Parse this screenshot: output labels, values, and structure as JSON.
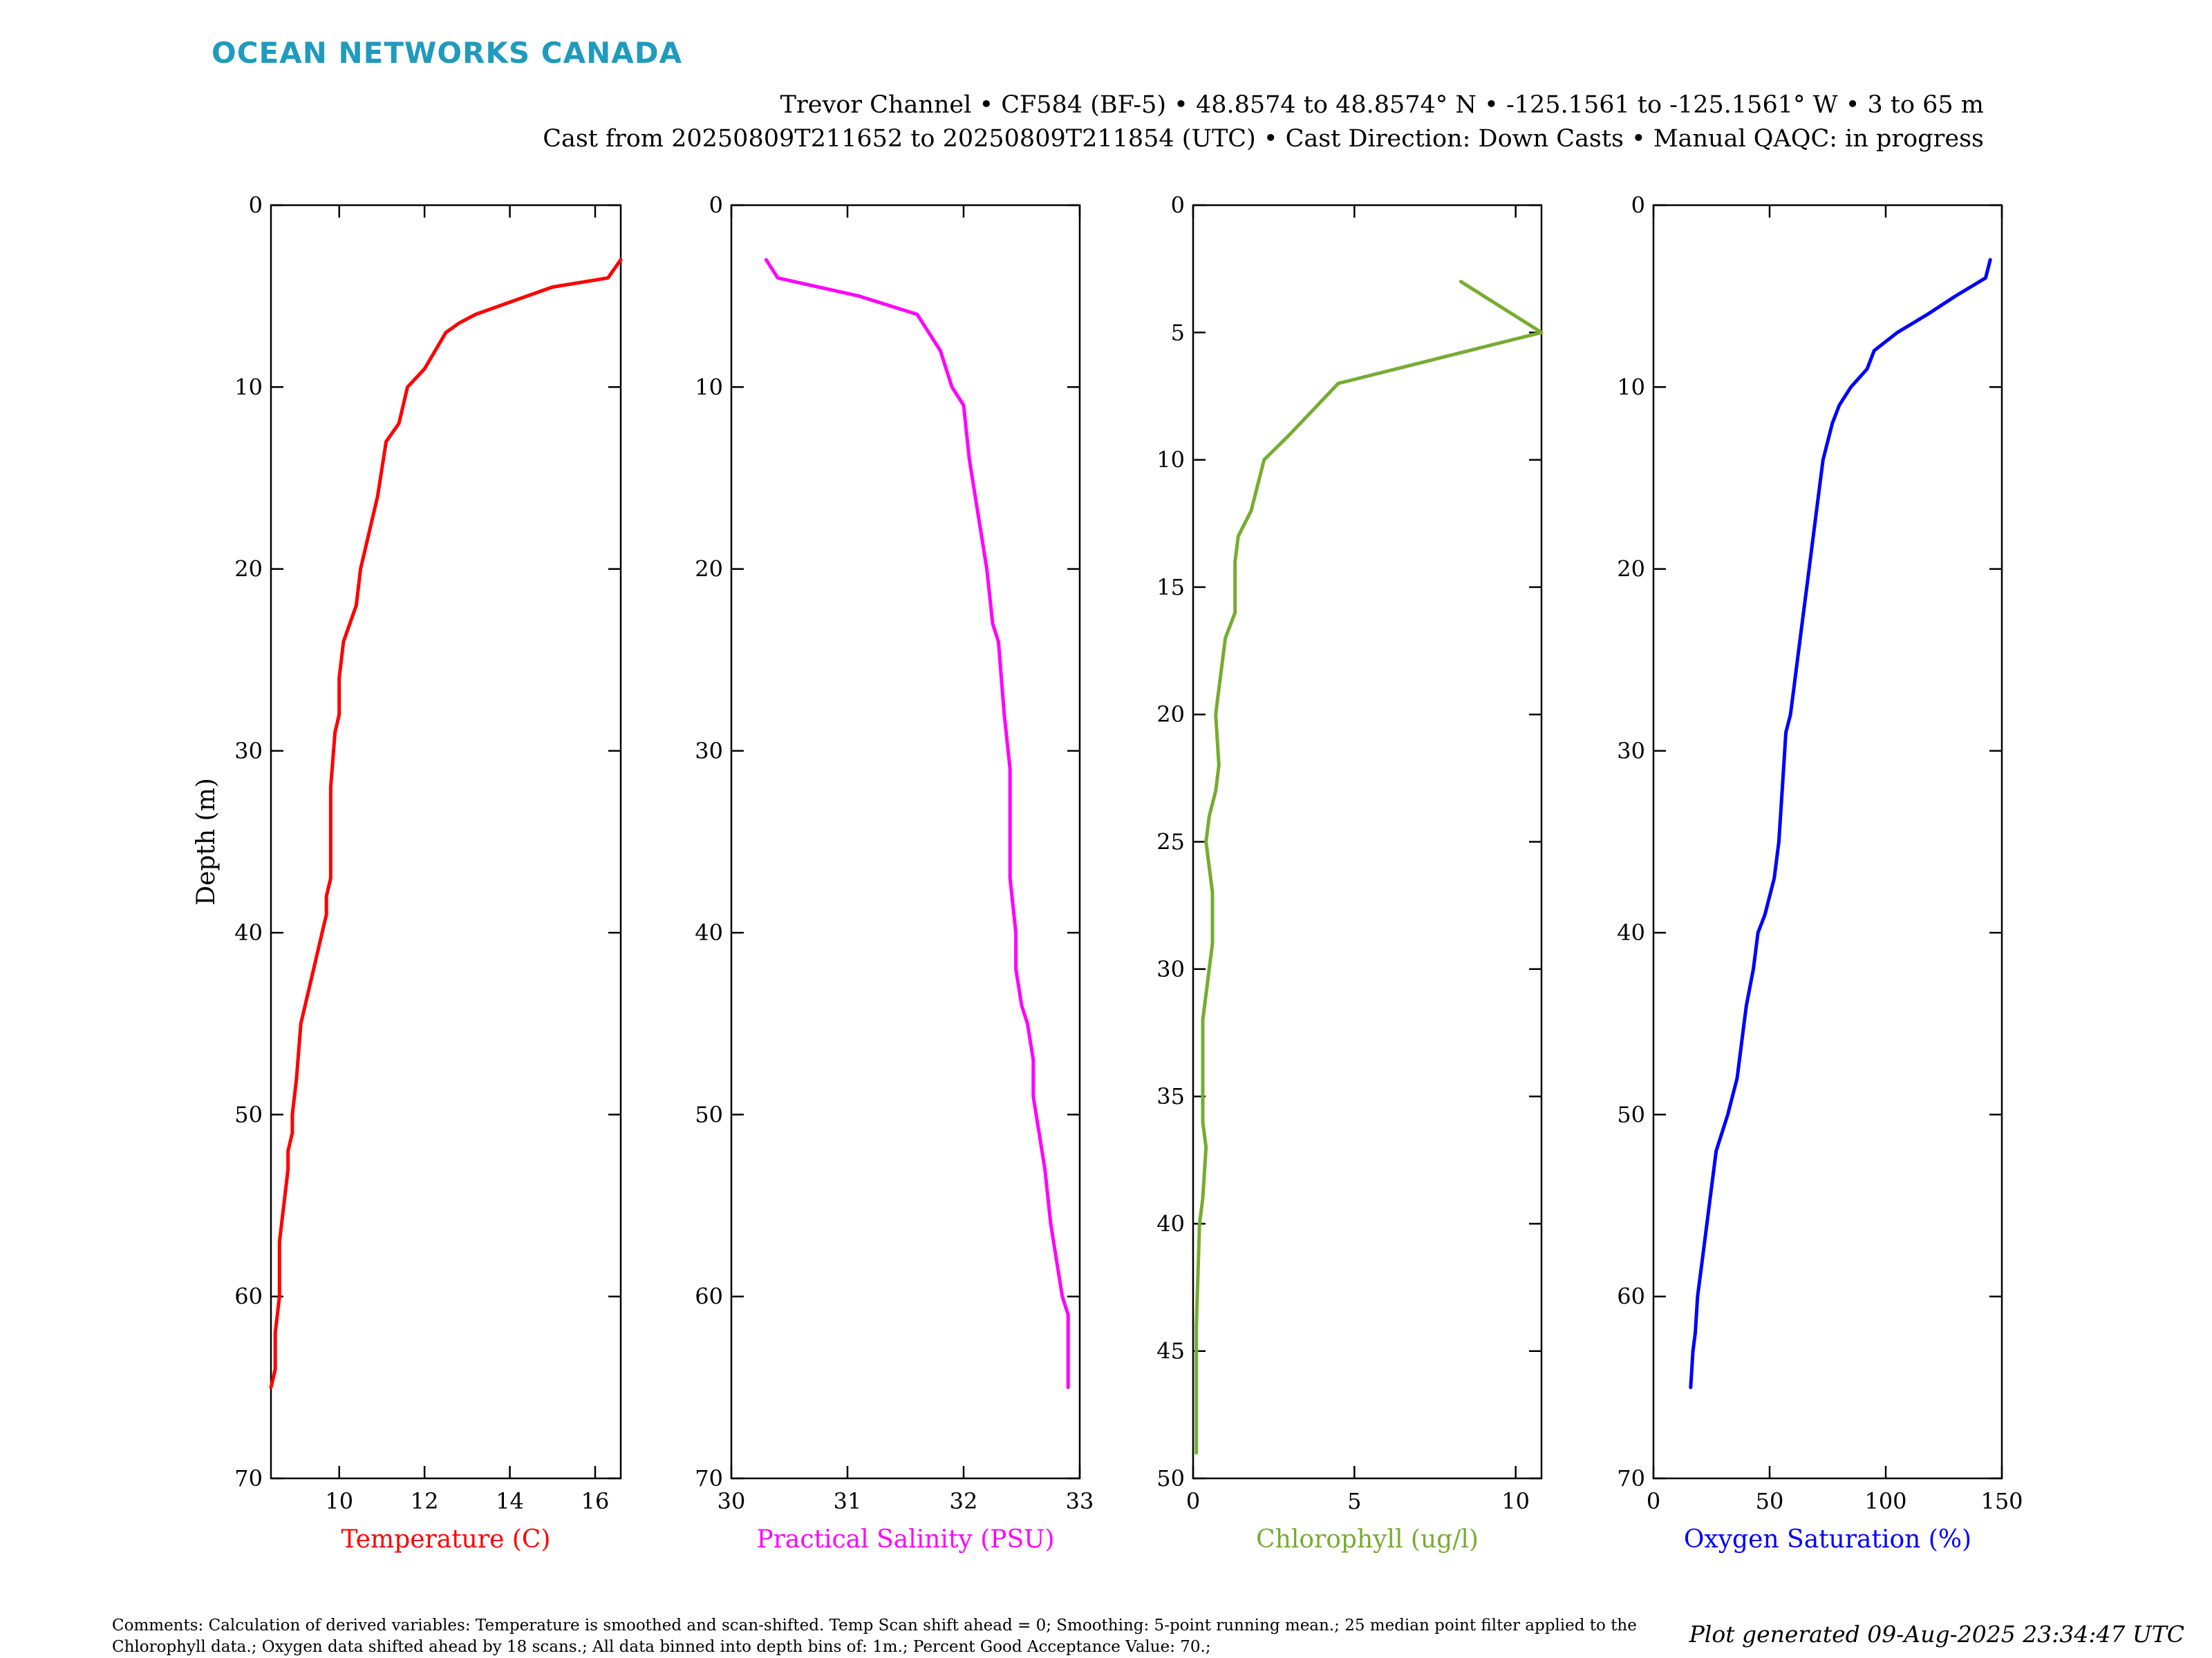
{
  "logo": "OCEAN NETWORKS CANADA",
  "header": {
    "line1": "Trevor Channel • CF584 (BF-5) • 48.8574 to 48.8574° N • -125.1561 to -125.1561° W • 3 to 65 m",
    "line2": "Cast from 20250809T211652 to 20250809T211854 (UTC) • Cast Direction: Down Casts • Manual QAQC: in progress"
  },
  "comments": "Comments: Calculation of derived variables: Temperature is smoothed and scan-shifted. Temp Scan shift ahead = 0; Smoothing: 5-point running mean.; 25 median point filter applied to the Chlorophyll data.; Oxygen data shifted ahead by 18 scans.; All data binned into depth bins of: 1m.; Percent Good Acceptance Value: 70.;",
  "generated": "Plot generated 09-Aug-2025 23:34:47 UTC",
  "chart_data": [
    {
      "type": "line",
      "xlabel": "Temperature (C)",
      "ylabel": "Depth (m)",
      "color": "#ff0000",
      "xlim": [
        8.4,
        16.6
      ],
      "ylim": [
        70,
        0
      ],
      "xticks": [
        10,
        12,
        14,
        16
      ],
      "yticks": [
        0,
        10,
        20,
        30,
        40,
        50,
        60,
        70
      ],
      "series": [
        {
          "x": [
            16.6,
            16.3,
            15.0,
            14.4,
            13.2,
            12.8,
            12.5,
            12.0,
            11.6,
            11.4,
            11.1,
            10.9,
            10.8,
            10.6,
            10.5,
            10.4,
            10.1,
            10.0,
            10.0,
            9.9,
            9.8,
            9.8,
            9.8,
            9.7,
            9.7,
            9.6,
            9.4,
            9.2,
            9.1,
            9.0,
            8.9,
            8.9,
            8.8,
            8.8,
            8.7,
            8.6,
            8.6,
            8.6,
            8.5,
            8.5,
            8.4
          ],
          "y": [
            3,
            4,
            4.5,
            5,
            6,
            6.5,
            7,
            9,
            10,
            12,
            13,
            16,
            17,
            19,
            20,
            22,
            24,
            26,
            28,
            29,
            32,
            35,
            37,
            38,
            39,
            40,
            42,
            44,
            45,
            48,
            50,
            51,
            52,
            53,
            55,
            57,
            59,
            60,
            62,
            64,
            65
          ]
        }
      ]
    },
    {
      "type": "line",
      "xlabel": "Practical Salinity (PSU)",
      "ylabel": "",
      "color": "#ff00ff",
      "xlim": [
        30,
        33
      ],
      "ylim": [
        70,
        0
      ],
      "xticks": [
        30,
        31,
        32,
        33
      ],
      "yticks": [
        0,
        10,
        20,
        30,
        40,
        50,
        60,
        70
      ],
      "series": [
        {
          "x": [
            30.3,
            30.4,
            31.1,
            31.6,
            31.7,
            31.8,
            31.85,
            31.9,
            32.0,
            32.05,
            32.1,
            32.15,
            32.2,
            32.25,
            32.3,
            32.35,
            32.4,
            32.4,
            32.45,
            32.45,
            32.5,
            32.55,
            32.6,
            32.6,
            32.65,
            32.7,
            32.75,
            32.8,
            32.85,
            32.9,
            32.9,
            32.9
          ],
          "y": [
            3,
            4,
            5,
            6,
            7,
            8,
            9,
            10,
            11,
            14,
            16,
            18,
            20,
            23,
            24,
            28,
            31,
            37,
            40,
            42,
            44,
            45,
            47,
            49,
            51,
            53,
            56,
            58,
            60,
            61,
            63,
            65
          ]
        }
      ]
    },
    {
      "type": "line",
      "xlabel": "Chlorophyll (ug/l)",
      "ylabel": "",
      "color": "#77ac30",
      "xlim": [
        0,
        10.8
      ],
      "ylim": [
        50,
        0
      ],
      "xticks": [
        0,
        5,
        10
      ],
      "yticks": [
        0,
        5,
        10,
        15,
        20,
        25,
        30,
        35,
        40,
        45,
        50
      ],
      "series": [
        {
          "x": [
            8.3,
            10.8,
            4.5,
            3.0,
            2.2,
            1.8,
            1.4,
            1.3,
            1.3,
            1.0,
            0.8,
            0.7,
            0.8,
            0.7,
            0.5,
            0.4,
            0.6,
            0.6,
            0.5,
            0.3,
            0.3,
            0.4,
            0.3,
            0.2,
            0.1,
            0.1
          ],
          "y": [
            3,
            5,
            7,
            9,
            10,
            12,
            13,
            14,
            16,
            17,
            19,
            20,
            22,
            23,
            24,
            25,
            27,
            29,
            30,
            32,
            36,
            37,
            39,
            40,
            44,
            49
          ]
        }
      ]
    },
    {
      "type": "line",
      "xlabel": "Oxygen Saturation (%)",
      "ylabel": "",
      "color": "#0000ff",
      "xlim": [
        0,
        150
      ],
      "ylim": [
        70,
        0
      ],
      "xticks": [
        0,
        50,
        100,
        150
      ],
      "yticks": [
        0,
        10,
        20,
        30,
        40,
        50,
        60,
        70
      ],
      "series": [
        {
          "x": [
            145,
            143,
            130,
            118,
            105,
            95,
            92,
            85,
            80,
            77,
            75,
            73,
            72,
            70,
            68,
            66,
            64,
            62,
            60,
            59,
            57,
            56,
            55,
            54,
            52,
            50,
            48,
            45,
            43,
            40,
            39,
            38,
            36,
            32,
            27,
            25,
            23,
            21,
            19,
            18,
            17,
            16
          ],
          "y": [
            3,
            4,
            5,
            6,
            7,
            8,
            9,
            10,
            11,
            12,
            13,
            14,
            15,
            17,
            19,
            21,
            23,
            25,
            27,
            28,
            29,
            31,
            33,
            35,
            37,
            38,
            39,
            40,
            42,
            44,
            45,
            46,
            48,
            50,
            52,
            54,
            56,
            58,
            60,
            62,
            63,
            65
          ]
        }
      ]
    }
  ]
}
